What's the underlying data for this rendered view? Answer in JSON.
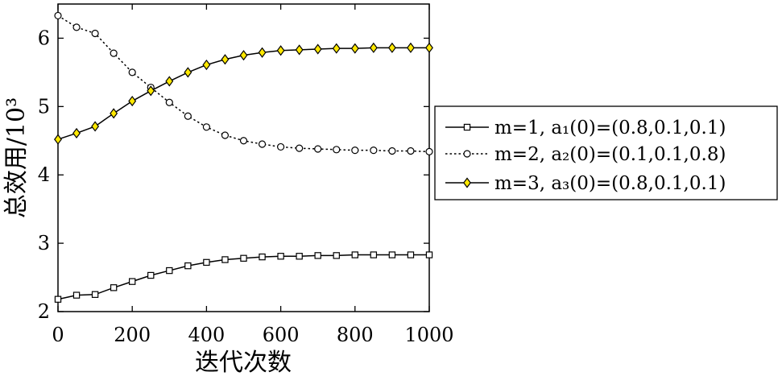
{
  "chart_data": {
    "type": "line",
    "xlabel": "迭代次数",
    "ylabel": "总效用/10³",
    "xlim": [
      0,
      1000
    ],
    "ylim": [
      2,
      6.5
    ],
    "xticks": [
      "0",
      "200",
      "400",
      "600",
      "800",
      "1000"
    ],
    "yticks": [
      "2",
      "3",
      "4",
      "5",
      "6"
    ],
    "grid": false,
    "legend_position": "right",
    "x": [
      0,
      50,
      100,
      150,
      200,
      250,
      300,
      350,
      400,
      450,
      500,
      550,
      600,
      650,
      700,
      750,
      800,
      850,
      900,
      950,
      1000
    ],
    "series": [
      {
        "name": "m=1, a₁(0)=(0.8,0.1,0.1)",
        "marker": "square",
        "line": "solid",
        "color": "#000000",
        "marker_fill": "#ffffff",
        "values": [
          2.18,
          2.24,
          2.25,
          2.35,
          2.44,
          2.53,
          2.6,
          2.67,
          2.72,
          2.76,
          2.78,
          2.8,
          2.81,
          2.81,
          2.82,
          2.82,
          2.83,
          2.83,
          2.83,
          2.83,
          2.83
        ]
      },
      {
        "name": "m=2, a₂(0)=(0.1,0.1,0.8)",
        "marker": "circle",
        "line": "dotted",
        "color": "#000000",
        "marker_fill": "#ffffff",
        "values": [
          6.33,
          6.16,
          6.07,
          5.78,
          5.5,
          5.28,
          5.06,
          4.86,
          4.7,
          4.58,
          4.5,
          4.45,
          4.41,
          4.39,
          4.38,
          4.37,
          4.36,
          4.36,
          4.35,
          4.35,
          4.34
        ]
      },
      {
        "name": "m=3, a₃(0)=(0.8,0.1,0.1)",
        "marker": "diamond",
        "line": "solid",
        "color": "#000000",
        "marker_fill": "#ffe800",
        "values": [
          4.52,
          4.61,
          4.71,
          4.9,
          5.08,
          5.23,
          5.37,
          5.5,
          5.61,
          5.69,
          5.75,
          5.79,
          5.82,
          5.83,
          5.84,
          5.85,
          5.85,
          5.86,
          5.86,
          5.86,
          5.86
        ]
      }
    ]
  }
}
